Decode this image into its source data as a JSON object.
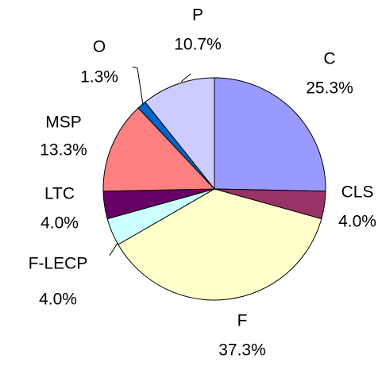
{
  "chart_data": {
    "type": "pie",
    "categories": [
      "C",
      "CLS",
      "F",
      "F-LECP",
      "LTC",
      "MSP",
      "O",
      "P"
    ],
    "values": [
      25.3,
      4.0,
      37.3,
      4.0,
      4.0,
      13.3,
      1.3,
      10.7
    ],
    "value_labels": [
      "25.3%",
      "4.0%",
      "37.3%",
      "4.0%",
      "4.0%",
      "13.3%",
      "1.3%",
      "10.7%"
    ],
    "colors": [
      "#9999ff",
      "#993366",
      "#ffffcc",
      "#ccffff",
      "#660066",
      "#ff8080",
      "#0066cc",
      "#ccccff"
    ]
  }
}
